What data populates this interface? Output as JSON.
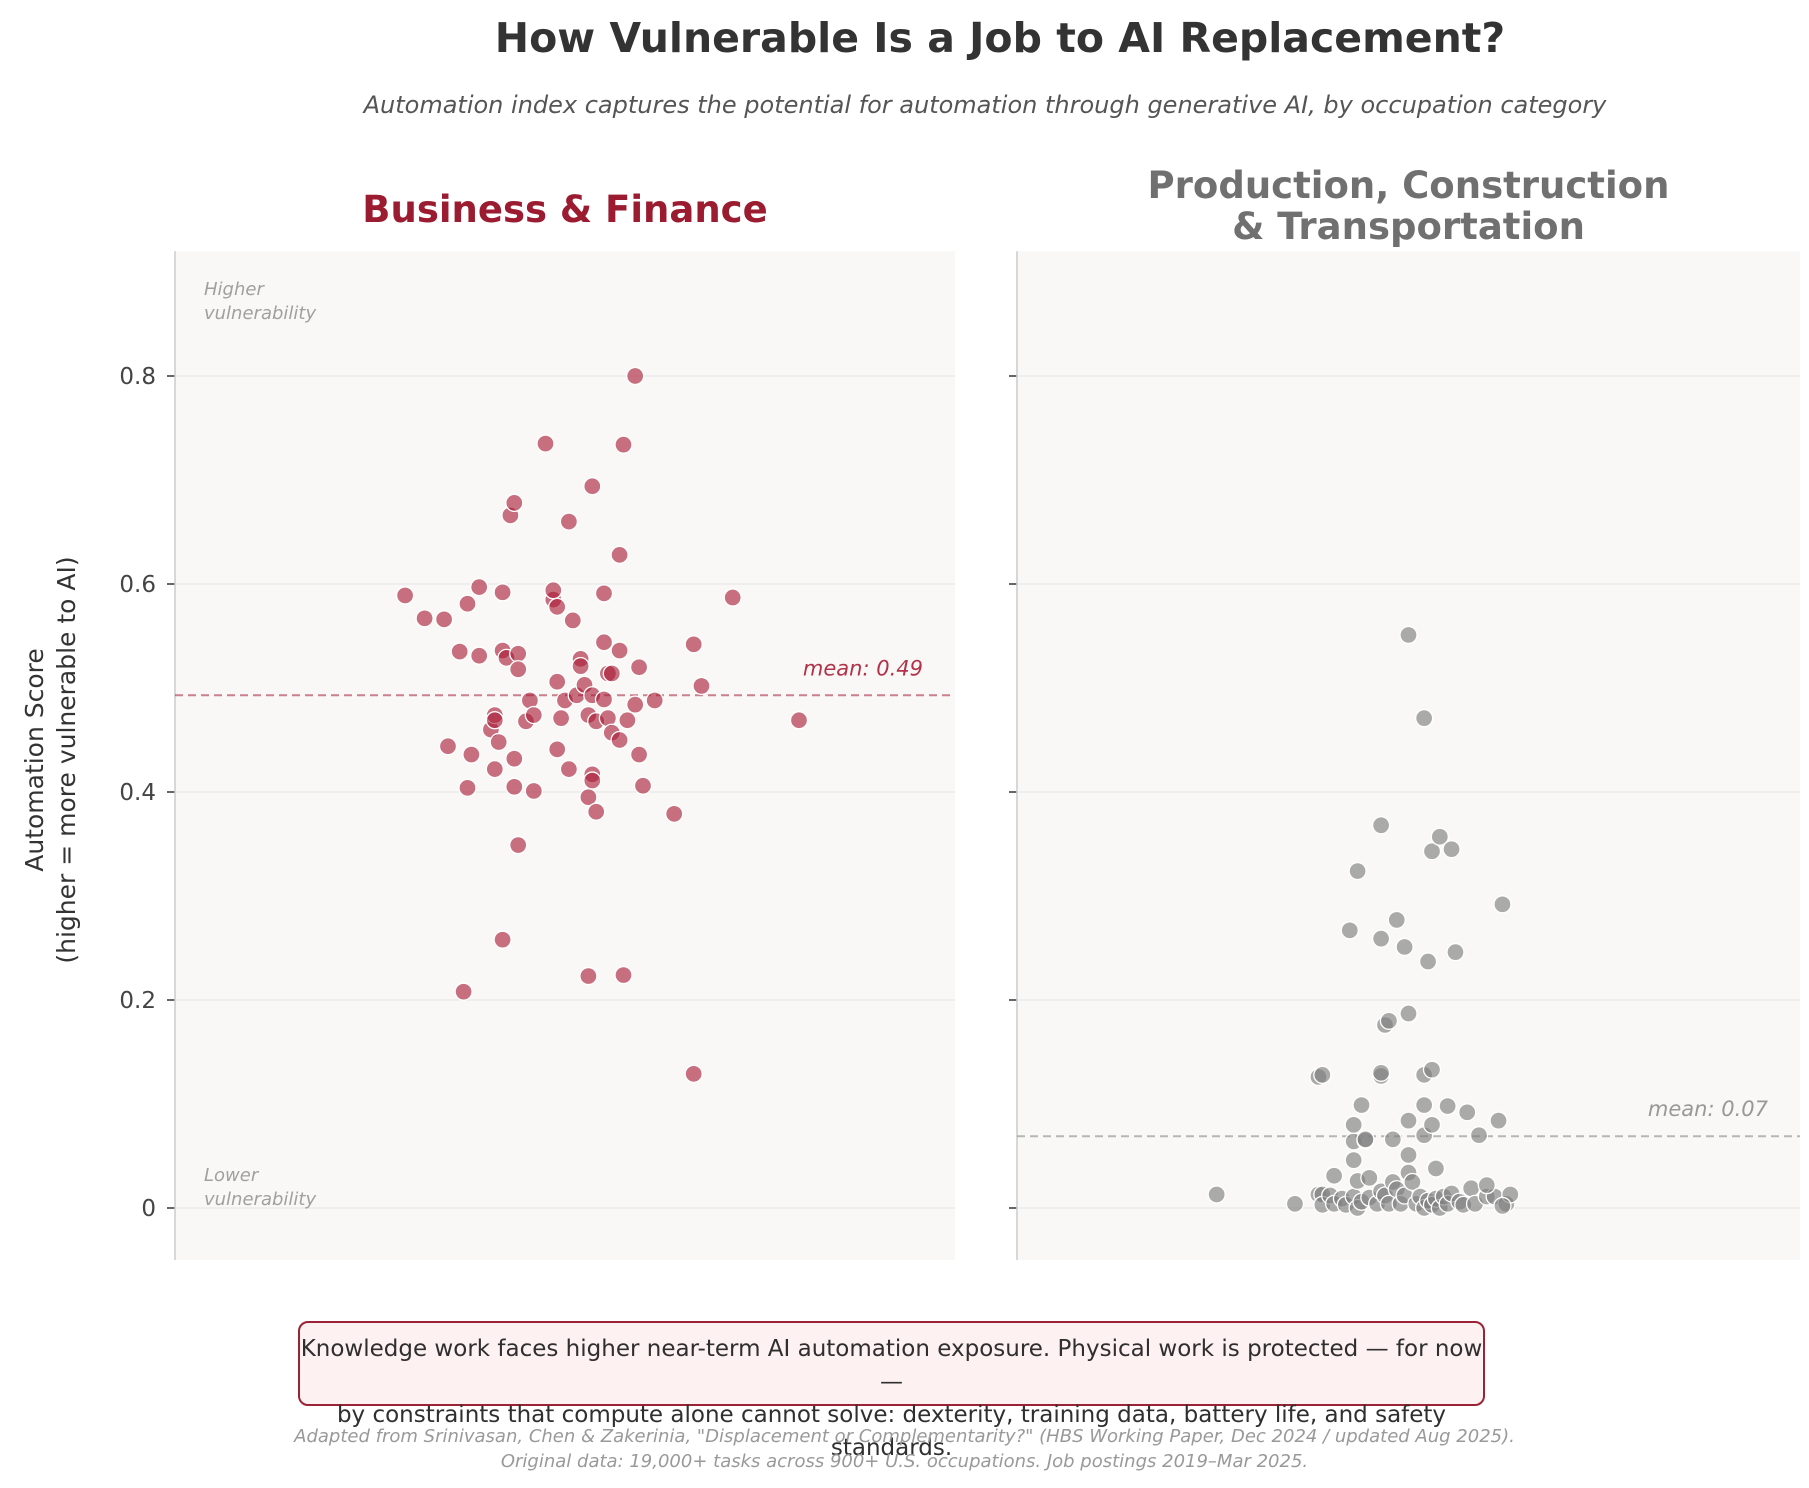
{
  "title": "How Vulnerable Is a Job to AI Replacement?",
  "subtitle": "Automation index captures the potential for automation through generative AI, by occupation category",
  "y_axis_label_line1": "Automation Score",
  "y_axis_label_line2": "(higher = more vulnerable to AI)",
  "higher_label_line1": "Higher",
  "higher_label_line2": "vulnerability",
  "lower_label_line1": "Lower",
  "lower_label_line2": "vulnerability",
  "note_line1": "Knowledge work faces higher near-term AI automation exposure. Physical work is protected — for now —",
  "note_line2": "by constraints that compute alone cannot solve: dexterity, training data, battery life, and safety standards.",
  "source_line1": "Adapted from Srinivasan, Chen & Zakerinia, \"Displacement or Complementarity?\" (HBS Working Paper, Dec 2024 / updated Aug 2025).",
  "source_line2": "Original data: 19,000+ tasks across 900+ U.S. occupations. Job postings 2019–Mar 2025.",
  "colors": {
    "business": "#a81c36",
    "production": "#7f7f7f",
    "title_business": "#9b1b30",
    "title_production": "#707070",
    "panel_bg": "#f9f8f6",
    "grid": "#ebebeb"
  },
  "chart_data": {
    "type": "scatter",
    "ylim": [
      -0.05,
      0.92
    ],
    "y_ticks": [
      0,
      0.2,
      0.4,
      0.6,
      0.8
    ],
    "y_tick_labels": [
      "0",
      "0.2",
      "0.4",
      "0.6",
      "0.8"
    ],
    "grid": true,
    "x_encoding": "horizontal jitter (no x scale)",
    "panels": [
      {
        "title_lines": [
          "Business & Finance"
        ],
        "mean": 0.493,
        "mean_label": "mean: 0.49",
        "color": "#a81c36",
        "points": [
          [
            -0.41,
            0.589
          ],
          [
            -0.36,
            0.567
          ],
          [
            -0.31,
            0.566
          ],
          [
            -0.27,
            0.535
          ],
          [
            -0.25,
            0.581
          ],
          [
            -0.22,
            0.597
          ],
          [
            -0.22,
            0.531
          ],
          [
            -0.3,
            0.444
          ],
          [
            -0.25,
            0.404
          ],
          [
            -0.24,
            0.436
          ],
          [
            -0.19,
            0.46
          ],
          [
            -0.18,
            0.474
          ],
          [
            -0.18,
            0.469
          ],
          [
            -0.18,
            0.422
          ],
          [
            -0.17,
            0.448
          ],
          [
            -0.16,
            0.592
          ],
          [
            -0.16,
            0.536
          ],
          [
            -0.15,
            0.529
          ],
          [
            -0.14,
            0.666
          ],
          [
            -0.13,
            0.678
          ],
          [
            -0.12,
            0.533
          ],
          [
            -0.12,
            0.518
          ],
          [
            -0.13,
            0.432
          ],
          [
            -0.13,
            0.405
          ],
          [
            -0.1,
            0.468
          ],
          [
            -0.09,
            0.488
          ],
          [
            -0.08,
            0.474
          ],
          [
            -0.08,
            0.401
          ],
          [
            -0.12,
            0.349
          ],
          [
            -0.16,
            0.258
          ],
          [
            -0.26,
            0.208
          ],
          [
            -0.05,
            0.735
          ],
          [
            -0.03,
            0.585
          ],
          [
            -0.03,
            0.594
          ],
          [
            -0.02,
            0.578
          ],
          [
            -0.02,
            0.506
          ],
          [
            -0.02,
            0.441
          ],
          [
            -0.01,
            0.471
          ],
          [
            0.0,
            0.488
          ],
          [
            0.01,
            0.66
          ],
          [
            0.02,
            0.565
          ],
          [
            0.01,
            0.422
          ],
          [
            0.03,
            0.493
          ],
          [
            0.04,
            0.528
          ],
          [
            0.04,
            0.521
          ],
          [
            0.05,
            0.503
          ],
          [
            0.06,
            0.474
          ],
          [
            0.07,
            0.493
          ],
          [
            0.07,
            0.417
          ],
          [
            0.07,
            0.411
          ],
          [
            0.06,
            0.395
          ],
          [
            0.07,
            0.694
          ],
          [
            0.08,
            0.468
          ],
          [
            0.08,
            0.381
          ],
          [
            0.1,
            0.591
          ],
          [
            0.1,
            0.544
          ],
          [
            0.1,
            0.489
          ],
          [
            0.11,
            0.514
          ],
          [
            0.12,
            0.514
          ],
          [
            0.11,
            0.471
          ],
          [
            0.12,
            0.457
          ],
          [
            0.14,
            0.628
          ],
          [
            0.14,
            0.536
          ],
          [
            0.14,
            0.45
          ],
          [
            0.15,
            0.734
          ],
          [
            0.16,
            0.469
          ],
          [
            0.18,
            0.8
          ],
          [
            0.18,
            0.484
          ],
          [
            0.19,
            0.52
          ],
          [
            0.19,
            0.436
          ],
          [
            0.2,
            0.406
          ],
          [
            0.23,
            0.488
          ],
          [
            0.28,
            0.379
          ],
          [
            0.33,
            0.542
          ],
          [
            0.35,
            0.502
          ],
          [
            0.43,
            0.587
          ],
          [
            0.6,
            0.469
          ],
          [
            0.33,
            0.129
          ],
          [
            0.06,
            0.223
          ],
          [
            0.15,
            0.224
          ]
        ]
      },
      {
        "title_lines": [
          "Production, Construction",
          "& Transportation"
        ],
        "mean": 0.069,
        "mean_label": "mean: 0.07",
        "color": "#7f7f7f",
        "points": [
          [
            -0.49,
            0.013
          ],
          [
            -0.29,
            0.004
          ],
          [
            -0.23,
            0.013
          ],
          [
            -0.22,
            0.013
          ],
          [
            -0.22,
            0.003
          ],
          [
            -0.2,
            0.012
          ],
          [
            -0.19,
            0.004
          ],
          [
            -0.19,
            0.031
          ],
          [
            -0.17,
            0.009
          ],
          [
            -0.16,
            0.003
          ],
          [
            -0.14,
            0.011
          ],
          [
            -0.13,
            0.026
          ],
          [
            -0.14,
            0.046
          ],
          [
            -0.14,
            0.064
          ],
          [
            -0.11,
            0.065
          ],
          [
            -0.12,
            0.099
          ],
          [
            -0.13,
            0.0
          ],
          [
            -0.12,
            0.006
          ],
          [
            -0.1,
            0.029
          ],
          [
            -0.1,
            0.01
          ],
          [
            -0.08,
            0.004
          ],
          [
            -0.07,
            0.016
          ],
          [
            -0.06,
            0.012
          ],
          [
            -0.05,
            0.004
          ],
          [
            -0.04,
            0.025
          ],
          [
            -0.03,
            0.018
          ],
          [
            -0.02,
            0.004
          ],
          [
            -0.01,
            0.012
          ],
          [
            0.0,
            0.034
          ],
          [
            0.0,
            0.051
          ],
          [
            0.01,
            0.025
          ],
          [
            0.02,
            0.004
          ],
          [
            0.03,
            0.011
          ],
          [
            0.04,
            0.0
          ],
          [
            0.05,
            0.007
          ],
          [
            0.06,
            0.003
          ],
          [
            0.07,
            0.009
          ],
          [
            0.07,
            0.038
          ],
          [
            0.08,
            0.0
          ],
          [
            0.09,
            0.011
          ],
          [
            0.1,
            0.004
          ],
          [
            0.11,
            0.014
          ],
          [
            0.13,
            0.006
          ],
          [
            0.14,
            0.003
          ],
          [
            0.16,
            0.019
          ],
          [
            0.17,
            0.004
          ],
          [
            0.2,
            0.011
          ],
          [
            0.22,
            0.011
          ],
          [
            0.25,
            0.004
          ],
          [
            0.26,
            0.013
          ],
          [
            0.2,
            0.022
          ],
          [
            0.24,
            0.002
          ],
          [
            -0.23,
            0.126
          ],
          [
            -0.22,
            0.128
          ],
          [
            -0.07,
            0.127
          ],
          [
            -0.07,
            0.13
          ],
          [
            -0.14,
            0.08
          ],
          [
            -0.11,
            0.066
          ],
          [
            -0.04,
            0.066
          ],
          [
            0.0,
            0.084
          ],
          [
            0.04,
            0.099
          ],
          [
            0.04,
            0.07
          ],
          [
            0.06,
            0.08
          ],
          [
            0.1,
            0.098
          ],
          [
            0.15,
            0.092
          ],
          [
            0.18,
            0.07
          ],
          [
            0.23,
            0.084
          ],
          [
            -0.06,
            0.176
          ],
          [
            -0.05,
            0.18
          ],
          [
            0.0,
            0.187
          ],
          [
            0.04,
            0.128
          ],
          [
            0.06,
            0.133
          ],
          [
            -0.15,
            0.267
          ],
          [
            -0.13,
            0.324
          ],
          [
            -0.07,
            0.259
          ],
          [
            -0.03,
            0.277
          ],
          [
            -0.01,
            0.251
          ],
          [
            0.05,
            0.237
          ],
          [
            0.12,
            0.246
          ],
          [
            0.24,
            0.292
          ],
          [
            -0.07,
            0.368
          ],
          [
            0.06,
            0.343
          ],
          [
            0.08,
            0.357
          ],
          [
            0.11,
            0.345
          ],
          [
            0.0,
            0.551
          ],
          [
            0.04,
            0.471
          ]
        ]
      }
    ]
  }
}
